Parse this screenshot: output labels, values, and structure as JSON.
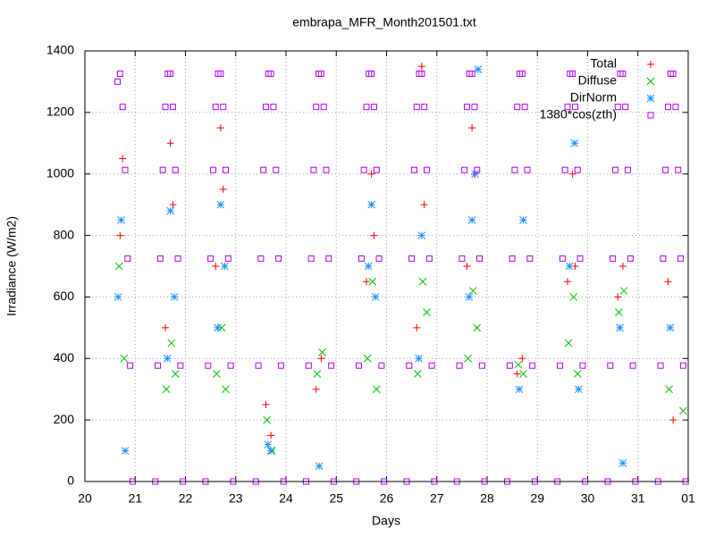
{
  "chart_data": {
    "type": "scatter",
    "title": "embrapa_MFR_Month201501.txt",
    "xlabel": "Days",
    "ylabel": "Irradiance (W/m2)",
    "xlim": [
      20,
      32
    ],
    "xticks": [
      20,
      21,
      22,
      23,
      24,
      25,
      26,
      27,
      28,
      29,
      30,
      31,
      {
        "value": 32,
        "label": "01"
      }
    ],
    "ylim": [
      0,
      1400
    ],
    "yticks": [
      0,
      200,
      400,
      600,
      800,
      1000,
      1200,
      1400
    ],
    "grid": true,
    "legend": "top-right",
    "series": [
      {
        "name": "Total",
        "color": "#ff0000",
        "marker": "plus",
        "x": [
          20.7,
          20.75,
          21.6,
          21.7,
          21.75,
          22.6,
          22.7,
          22.75,
          23.6,
          23.7,
          24.6,
          24.7,
          25.6,
          25.7,
          25.75,
          26.6,
          26.7,
          26.75,
          27.6,
          27.7,
          27.75,
          28.6,
          28.7,
          29.6,
          29.7,
          29.75,
          30.6,
          30.7,
          31.6,
          31.7
        ],
        "values": [
          800,
          1050,
          500,
          1100,
          900,
          700,
          1150,
          950,
          250,
          150,
          300,
          400,
          650,
          1000,
          800,
          500,
          1350,
          900,
          700,
          1150,
          1000,
          350,
          400,
          650,
          1000,
          700,
          600,
          700,
          650,
          200
        ]
      },
      {
        "name": "Diffuse",
        "color": "#00c000",
        "marker": "cross",
        "x": [
          20.68,
          20.78,
          21.62,
          21.72,
          21.8,
          22.62,
          22.72,
          22.8,
          23.62,
          23.72,
          24.62,
          24.72,
          25.62,
          25.72,
          25.8,
          26.62,
          26.72,
          26.8,
          27.62,
          27.72,
          27.8,
          28.62,
          28.72,
          29.62,
          29.72,
          29.8,
          30.62,
          30.72,
          31.62,
          31.9
        ],
        "values": [
          700,
          400,
          300,
          450,
          350,
          350,
          500,
          300,
          200,
          100,
          350,
          420,
          400,
          650,
          300,
          350,
          650,
          550,
          400,
          620,
          500,
          380,
          350,
          450,
          600,
          350,
          550,
          620,
          300,
          230
        ]
      },
      {
        "name": "DirNorm",
        "color": "#1e90ff",
        "marker": "star",
        "x": [
          20.66,
          20.72,
          20.8,
          21.64,
          21.7,
          21.78,
          22.64,
          22.7,
          22.78,
          23.64,
          23.7,
          24.66,
          25.64,
          25.7,
          25.78,
          26.64,
          26.7,
          27.64,
          27.7,
          27.76,
          27.82,
          28.64,
          28.72,
          29.64,
          29.74,
          29.82,
          30.64,
          30.7,
          31.64
        ],
        "values": [
          600,
          850,
          100,
          400,
          880,
          600,
          500,
          900,
          700,
          120,
          100,
          50,
          700,
          900,
          600,
          400,
          800,
          600,
          850,
          1000,
          1340,
          300,
          850,
          700,
          1100,
          300,
          500,
          60,
          500
        ]
      },
      {
        "name": "1380*cos(zth)",
        "color": "#b000ff",
        "marker": "square",
        "x": [
          20.65,
          20.7,
          20.75,
          20.8,
          20.85,
          20.9,
          20.95,
          21.4,
          21.45,
          21.5,
          21.55,
          21.6,
          21.65,
          21.7,
          21.75,
          21.8,
          21.85,
          21.9,
          21.95,
          22.4,
          22.45,
          22.5,
          22.55,
          22.6,
          22.65,
          22.7,
          22.75,
          22.8,
          22.85,
          22.9,
          22.95,
          23.4,
          23.45,
          23.5,
          23.55,
          23.6,
          23.65,
          23.7,
          23.75,
          23.8,
          23.85,
          23.9,
          23.95,
          24.4,
          24.45,
          24.5,
          24.55,
          24.6,
          24.65,
          24.7,
          24.75,
          24.8,
          24.85,
          24.9,
          24.95,
          25.4,
          25.45,
          25.5,
          25.55,
          25.6,
          25.65,
          25.7,
          25.75,
          25.8,
          25.85,
          25.9,
          25.95,
          26.4,
          26.45,
          26.5,
          26.55,
          26.6,
          26.65,
          26.7,
          26.75,
          26.8,
          26.85,
          26.9,
          26.95,
          27.4,
          27.45,
          27.5,
          27.55,
          27.6,
          27.65,
          27.7,
          27.75,
          27.8,
          27.85,
          27.9,
          27.95,
          28.4,
          28.45,
          28.5,
          28.55,
          28.6,
          28.65,
          28.7,
          28.75,
          28.8,
          28.85,
          28.9,
          28.95,
          29.4,
          29.45,
          29.5,
          29.55,
          29.6,
          29.65,
          29.7,
          29.75,
          29.8,
          29.85,
          29.9,
          29.95,
          30.4,
          30.45,
          30.5,
          30.55,
          30.6,
          30.65,
          30.7,
          30.75,
          30.8,
          30.85,
          30.9,
          30.95,
          31.4,
          31.45,
          31.5,
          31.55,
          31.6,
          31.65,
          31.7,
          31.75,
          31.8,
          31.85,
          31.9,
          31.95
        ],
        "values": [
          1300,
          1326,
          1218,
          1013,
          725,
          377,
          0,
          0,
          377,
          725,
          1013,
          1218,
          1326,
          1326,
          1218,
          1013,
          725,
          377,
          0,
          0,
          377,
          725,
          1013,
          1218,
          1326,
          1326,
          1218,
          1013,
          725,
          377,
          0,
          0,
          377,
          725,
          1013,
          1218,
          1326,
          1326,
          1218,
          1013,
          725,
          377,
          0,
          0,
          377,
          725,
          1013,
          1218,
          1326,
          1326,
          1218,
          1013,
          725,
          377,
          0,
          0,
          377,
          725,
          1013,
          1218,
          1326,
          1326,
          1218,
          1013,
          725,
          377,
          0,
          0,
          377,
          725,
          1013,
          1218,
          1326,
          1326,
          1218,
          1013,
          725,
          377,
          0,
          0,
          377,
          725,
          1013,
          1218,
          1326,
          1326,
          1218,
          1013,
          725,
          377,
          0,
          0,
          377,
          725,
          1013,
          1218,
          1326,
          1326,
          1218,
          1013,
          725,
          377,
          0,
          0,
          377,
          725,
          1013,
          1218,
          1326,
          1326,
          1218,
          1013,
          725,
          377,
          0,
          0,
          377,
          725,
          1013,
          1218,
          1326,
          1326,
          1218,
          1013,
          725,
          377,
          0,
          0,
          377,
          725,
          1013,
          1218,
          1326,
          1326,
          1218,
          1013,
          725,
          377,
          0
        ]
      }
    ]
  }
}
